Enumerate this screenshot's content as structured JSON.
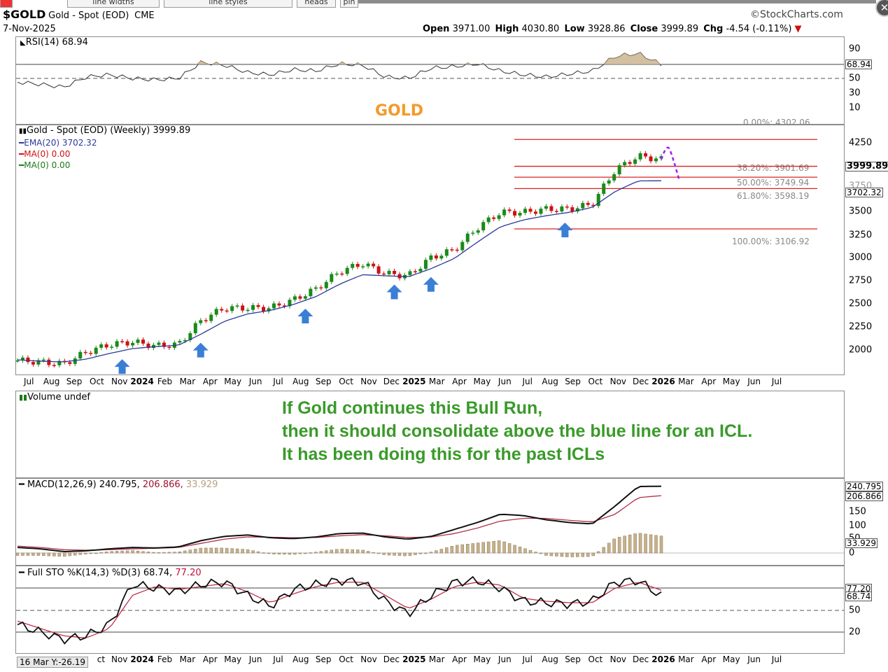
{
  "toolbar": {
    "items": [
      "line widths",
      "line styles",
      "heads",
      "pin"
    ]
  },
  "header": {
    "symbol": "$GOLD",
    "name": "Gold - Spot (EOD)",
    "exchange": "CME",
    "date": "7-Nov-2025",
    "brand": "StockCharts.com",
    "ohlc": {
      "open_label": "Open",
      "open": "3971.00",
      "high_label": "High",
      "high": "4030.80",
      "low_label": "Low",
      "low": "3928.86",
      "close_label": "Close",
      "close": "3999.89",
      "chg_label": "Chg",
      "chg": "-4.54 (-0.11%)"
    }
  },
  "rsi": {
    "label": "RSI(14) 68.94",
    "ticks": [
      "90",
      "50",
      "30",
      "10"
    ],
    "current": "68.94"
  },
  "price": {
    "title": "GOLD",
    "legend": {
      "main": "Gold - Spot (EOD) (Weekly) 3999.89",
      "ema": "EMA(20) 3702.32",
      "ma1": "MA(0) 0.00",
      "ma2": "MA(0) 0.00"
    },
    "ticks": [
      "4250",
      "3500",
      "3250",
      "3000",
      "2750",
      "2500",
      "2250",
      "2000"
    ],
    "tick_3750": "3750",
    "current_price": "3999.89",
    "current_ema": "3702.32",
    "fib": [
      {
        "label": "0.00%: 4302.06",
        "value": 4302.06
      },
      {
        "label": "38.20%: 3901.69",
        "value": 3901.69
      },
      {
        "label": "50.00%: 3749.94",
        "value": 3749.94
      },
      {
        "label": "61.80%: 3598.19",
        "value": 3598.19
      },
      {
        "label": "100.00%: 3106.92",
        "value": 3106.92
      }
    ]
  },
  "xaxis": {
    "labels": [
      "Jul",
      "Aug",
      "Sep",
      "Oct",
      "Nov",
      "2024",
      "Feb",
      "Mar",
      "Apr",
      "May",
      "Jun",
      "Jul",
      "Aug",
      "Sep",
      "Oct",
      "Nov",
      "Dec",
      "2025",
      "Mar",
      "Apr",
      "May",
      "Jun",
      "Jul",
      "Aug",
      "Sep",
      "Oct",
      "Nov",
      "Dec",
      "2026",
      "Mar",
      "Apr",
      "May",
      "Jun",
      "Jul"
    ],
    "bottom_labels": [
      "ct",
      "Nov",
      "2024",
      "Feb",
      "Mar",
      "Apr",
      "May",
      "Jun",
      "Jul",
      "Aug",
      "Sep",
      "Oct",
      "Nov",
      "Dec",
      "2025",
      "Mar",
      "Apr",
      "May",
      "Jun",
      "Jul",
      "Aug",
      "Sep",
      "Oct",
      "Nov",
      "Dec",
      "2026",
      "Mar",
      "Apr",
      "May",
      "Jun",
      "Jul"
    ]
  },
  "volume": {
    "label": "Volume undef"
  },
  "annotation": {
    "line1": "If Gold continues this Bull Run,",
    "line2": "then it should consolidate above the blue line for an ICL.",
    "line3": "It has been doing this for the past ICLs"
  },
  "macd": {
    "label_prefix": "MACD(12,26,9)",
    "v1": "240.795,",
    "v2": "206.866,",
    "v3": "33.929",
    "ticks": [
      "150",
      "100",
      "50",
      "0"
    ],
    "tag1": "240.795",
    "tag2": "206.866",
    "tag3": "33.929"
  },
  "sto": {
    "label_prefix": "Full STO %K(14,3) %D(3) 68.74,",
    "d_value": "77.20",
    "ticks": [
      "50",
      "20"
    ],
    "tag1": "77.20",
    "tag2": "68.74"
  },
  "footer": {
    "cursor": "16 Mar Y:-26.19"
  },
  "colors": {
    "up": "#1a8a1a",
    "down": "#d01010",
    "ema": "#2a3a9a",
    "fib": "#e02020",
    "arrow": "#3a7fd5",
    "annotation": "#3a9a2a",
    "title": "#f39a2a",
    "forecast": "#a020f0"
  },
  "chart_data": [
    {
      "type": "line",
      "title": "GOLD",
      "subtitle": "Gold - Spot (EOD) (Weekly) 3999.89",
      "ylim": [
        1800,
        4450
      ],
      "x": [
        "2023-07",
        "2023-08",
        "2023-09",
        "2023-10",
        "2023-11",
        "2023-12",
        "2024-01",
        "2024-02",
        "2024-03",
        "2024-04",
        "2024-05",
        "2024-06",
        "2024-07",
        "2024-08",
        "2024-09",
        "2024-10",
        "2024-11",
        "2024-12",
        "2025-01",
        "2025-02",
        "2025-03",
        "2025-04",
        "2025-05",
        "2025-06",
        "2025-07",
        "2025-08",
        "2025-09",
        "2025-10",
        "2025-11"
      ],
      "series": [
        {
          "name": "Gold - Spot (EOD)",
          "values": [
            1925,
            1915,
            1900,
            1985,
            2040,
            2060,
            2030,
            2040,
            2230,
            2330,
            2330,
            2330,
            2400,
            2500,
            2660,
            2740,
            2640,
            2620,
            2800,
            2880,
            3120,
            3300,
            3300,
            3340,
            3340,
            3400,
            3850,
            4050,
            4000
          ]
        },
        {
          "name": "EMA(20)",
          "values": [
            1930,
            1920,
            1915,
            1935,
            1975,
            2010,
            2025,
            2035,
            2120,
            2220,
            2280,
            2310,
            2360,
            2430,
            2540,
            2630,
            2620,
            2610,
            2690,
            2790,
            2960,
            3130,
            3210,
            3260,
            3300,
            3360,
            3560,
            3700,
            3702
          ]
        }
      ],
      "levels": [
        4302.06,
        3901.69,
        3749.94,
        3598.19,
        3106.92
      ],
      "scale": "log"
    },
    {
      "type": "line",
      "title": "RSI(14) 68.94",
      "ylim": [
        0,
        100
      ],
      "series": [
        {
          "name": "RSI(14)",
          "values": [
            45,
            42,
            38,
            52,
            55,
            50,
            48,
            50,
            72,
            68,
            58,
            55,
            62,
            60,
            70,
            68,
            52,
            50,
            64,
            66,
            70,
            60,
            55,
            52,
            56,
            60,
            80,
            84,
            69
          ]
        }
      ]
    },
    {
      "type": "line",
      "title": "MACD(12,26,9)",
      "ylim": [
        -20,
        260
      ],
      "series": [
        {
          "name": "MACD",
          "values": [
            20,
            15,
            5,
            8,
            15,
            20,
            18,
            22,
            45,
            60,
            65,
            55,
            52,
            58,
            70,
            72,
            58,
            50,
            60,
            85,
            110,
            140,
            135,
            120,
            110,
            105,
            170,
            240,
            241
          ]
        },
        {
          "name": "Signal",
          "values": [
            25,
            20,
            12,
            10,
            12,
            15,
            17,
            20,
            35,
            50,
            58,
            57,
            55,
            56,
            62,
            66,
            62,
            56,
            58,
            70,
            90,
            115,
            125,
            125,
            118,
            112,
            140,
            200,
            207
          ]
        }
      ]
    },
    {
      "type": "line",
      "title": "Full STO %K(14,3) %D(3)",
      "ylim": [
        0,
        100
      ],
      "series": [
        {
          "name": "%K",
          "values": [
            30,
            20,
            10,
            15,
            30,
            85,
            80,
            75,
            85,
            88,
            70,
            55,
            78,
            85,
            90,
            88,
            62,
            45,
            70,
            88,
            90,
            80,
            62,
            60,
            58,
            62,
            88,
            90,
            69
          ]
        },
        {
          "name": "%D",
          "values": [
            35,
            25,
            15,
            12,
            25,
            70,
            82,
            78,
            82,
            86,
            75,
            60,
            72,
            82,
            88,
            88,
            70,
            52,
            65,
            82,
            88,
            84,
            66,
            62,
            60,
            60,
            80,
            88,
            77
          ]
        }
      ]
    }
  ]
}
